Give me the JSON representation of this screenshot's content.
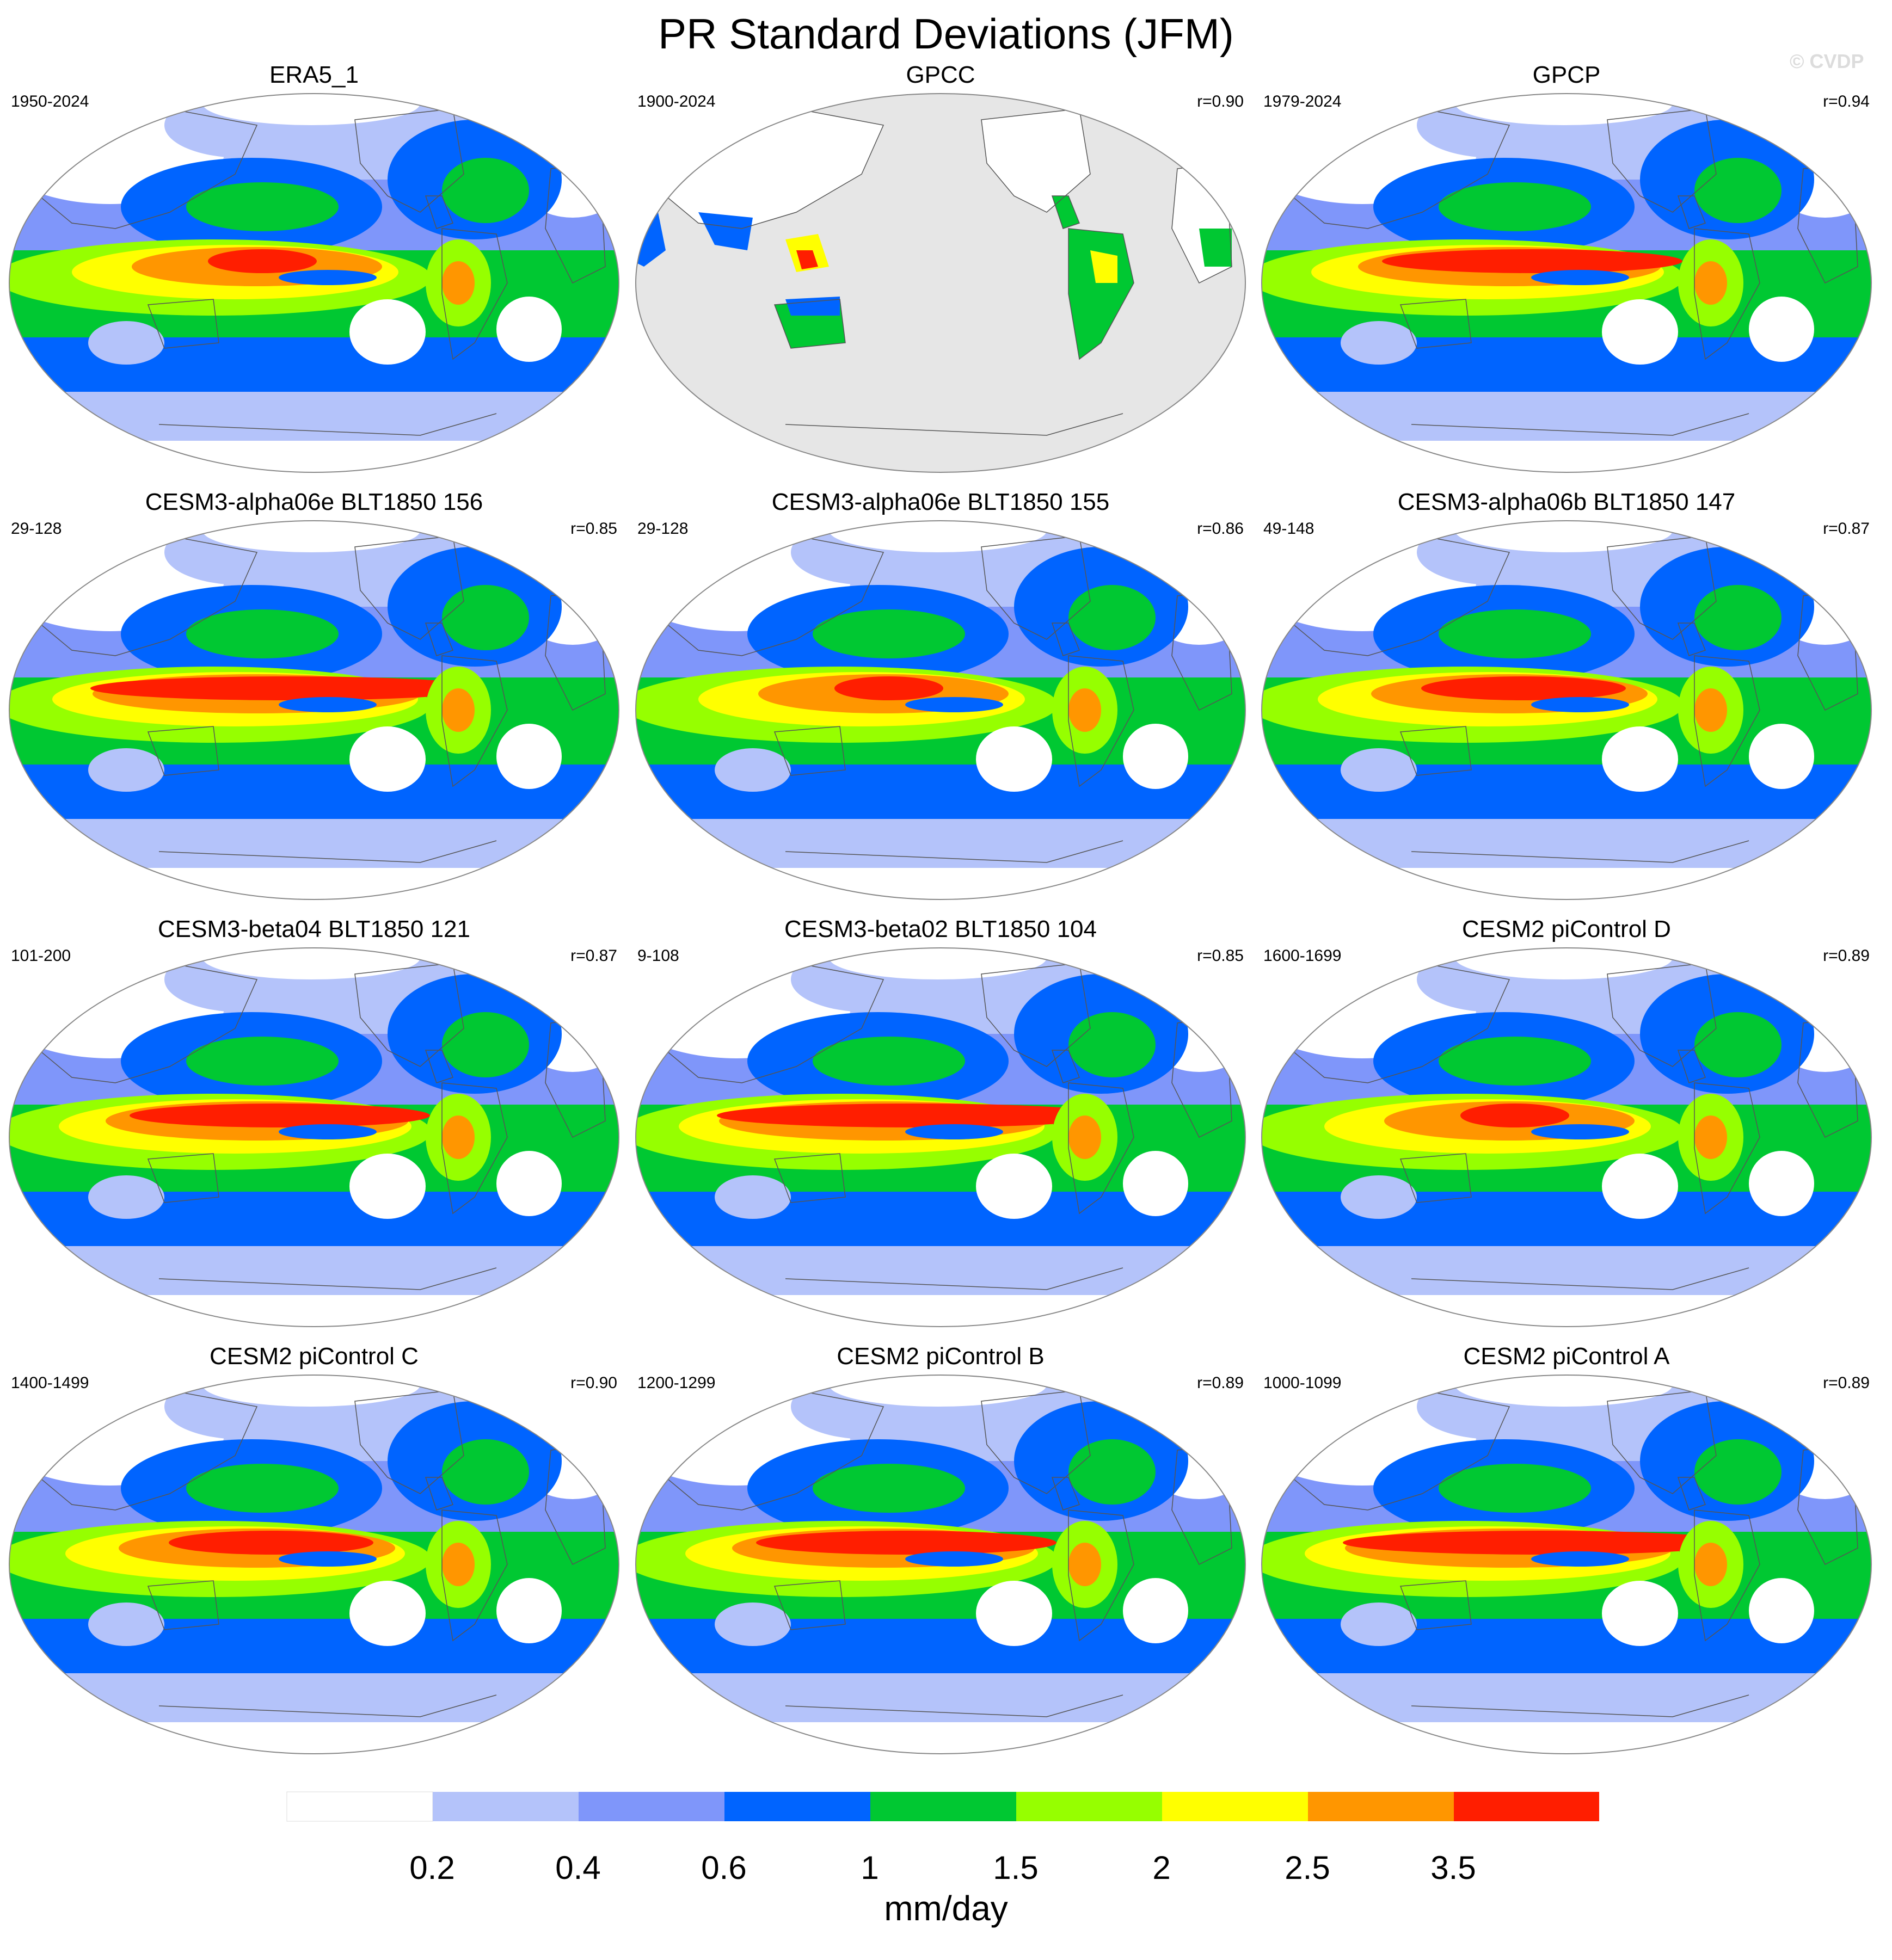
{
  "title": "PR Standard Deviations (JFM)",
  "watermark": "© CVDP",
  "colors": {
    "levels": [
      "#ffffff",
      "#b4c3fa",
      "#7f96fa",
      "#0064ff",
      "#00c832",
      "#96ff00",
      "#ffff00",
      "#ff9600",
      "#ff1e00"
    ],
    "land_mask": "#e6e6e6",
    "coast": "#555555"
  },
  "panels": [
    {
      "name": "ERA5_1",
      "period": "1950-2024",
      "corr": ""
    },
    {
      "name": "GPCC",
      "period": "1900-2024",
      "corr": "r=0.90",
      "land_only": true
    },
    {
      "name": "GPCP",
      "period": "1979-2024",
      "corr": "r=0.94"
    },
    {
      "name": "CESM3-alpha06e BLT1850 156",
      "period": "29-128",
      "corr": "r=0.85"
    },
    {
      "name": "CESM3-alpha06e BLT1850 155",
      "period": "29-128",
      "corr": "r=0.86"
    },
    {
      "name": "CESM3-alpha06b BLT1850 147",
      "period": "49-148",
      "corr": "r=0.87"
    },
    {
      "name": "CESM3-beta04 BLT1850 121",
      "period": "101-200",
      "corr": "r=0.87"
    },
    {
      "name": "CESM3-beta02 BLT1850 104",
      "period": "9-108",
      "corr": "r=0.85"
    },
    {
      "name": "CESM2 piControl D",
      "period": "1600-1699",
      "corr": "r=0.89"
    },
    {
      "name": "CESM2 piControl C",
      "period": "1400-1499",
      "corr": "r=0.90"
    },
    {
      "name": "CESM2 piControl B",
      "period": "1200-1299",
      "corr": "r=0.89"
    },
    {
      "name": "CESM2 piControl A",
      "period": "1000-1099",
      "corr": "r=0.89"
    }
  ],
  "colorbar": {
    "labels": [
      "0.2",
      "0.4",
      "0.6",
      "1",
      "1.5",
      "2",
      "2.5",
      "3.5"
    ],
    "units": "mm/day"
  }
}
